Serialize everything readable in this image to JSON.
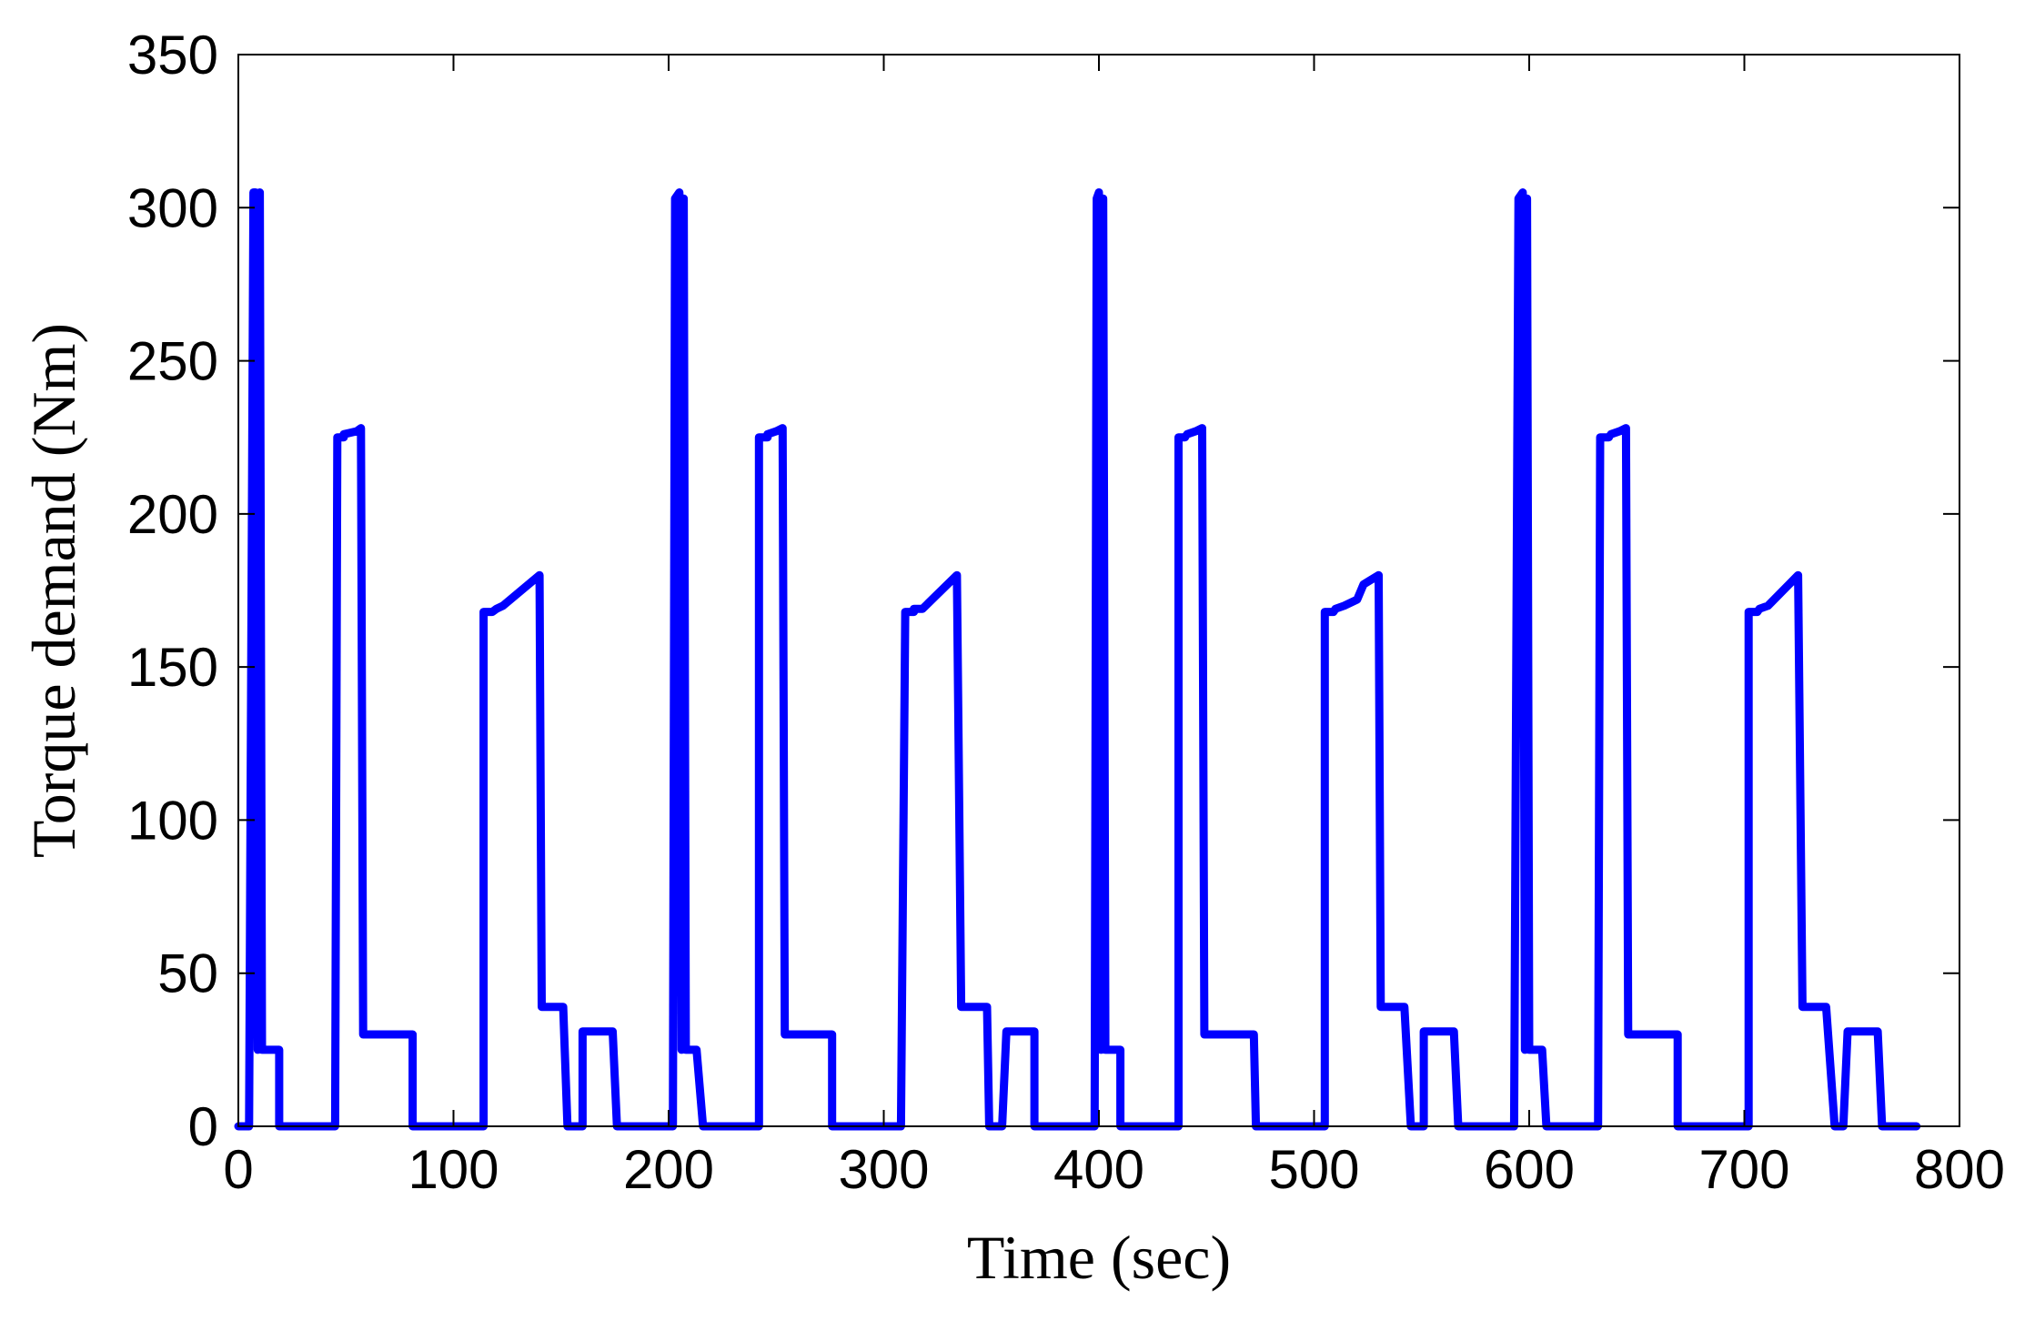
{
  "chart_data": {
    "type": "line",
    "title": "",
    "xlabel": "Time (sec)",
    "ylabel": "Torque demand (Nm)",
    "xlim": [
      0,
      800
    ],
    "ylim": [
      0,
      350
    ],
    "xticks": [
      0,
      100,
      200,
      300,
      400,
      500,
      600,
      700,
      800
    ],
    "yticks": [
      0,
      50,
      100,
      150,
      200,
      250,
      300,
      350
    ],
    "grid": false,
    "legend": "none",
    "series": [
      {
        "color": "#0000ff",
        "points": [
          [
            0,
            0
          ],
          [
            5,
            0
          ],
          [
            7,
            305
          ],
          [
            8,
            305
          ],
          [
            9,
            25
          ],
          [
            10,
            305
          ],
          [
            11,
            25
          ],
          [
            19,
            25
          ],
          [
            19,
            0
          ],
          [
            45,
            0
          ],
          [
            46,
            225
          ],
          [
            49,
            225
          ],
          [
            49,
            226
          ],
          [
            55,
            227
          ],
          [
            57,
            228
          ],
          [
            58,
            30
          ],
          [
            81,
            30
          ],
          [
            81,
            0
          ],
          [
            114,
            0
          ],
          [
            114,
            168
          ],
          [
            118,
            168
          ],
          [
            120,
            169
          ],
          [
            123,
            170
          ],
          [
            140,
            180
          ],
          [
            141,
            39
          ],
          [
            151,
            39
          ],
          [
            153,
            0
          ],
          [
            160,
            0
          ],
          [
            160,
            31
          ],
          [
            174,
            31
          ],
          [
            176,
            0
          ],
          [
            202,
            0
          ],
          [
            203,
            303
          ],
          [
            205,
            305
          ],
          [
            206,
            25
          ],
          [
            207,
            303
          ],
          [
            208,
            25
          ],
          [
            213,
            25
          ],
          [
            216,
            0
          ],
          [
            242,
            0
          ],
          [
            242,
            225
          ],
          [
            246,
            225
          ],
          [
            246,
            226
          ],
          [
            250,
            227
          ],
          [
            253,
            228
          ],
          [
            254,
            30
          ],
          [
            276,
            30
          ],
          [
            276,
            0
          ],
          [
            308,
            0
          ],
          [
            310,
            168
          ],
          [
            314,
            168
          ],
          [
            314,
            169
          ],
          [
            318,
            169
          ],
          [
            334,
            180
          ],
          [
            336,
            39
          ],
          [
            348,
            39
          ],
          [
            349,
            0
          ],
          [
            355,
            0
          ],
          [
            357,
            31
          ],
          [
            370,
            31
          ],
          [
            370,
            0
          ],
          [
            398,
            0
          ],
          [
            399,
            303
          ],
          [
            400,
            305
          ],
          [
            401,
            25
          ],
          [
            402,
            303
          ],
          [
            403,
            25
          ],
          [
            410,
            25
          ],
          [
            410,
            0
          ],
          [
            437,
            0
          ],
          [
            437,
            225
          ],
          [
            440,
            225
          ],
          [
            441,
            226
          ],
          [
            445,
            227
          ],
          [
            448,
            228
          ],
          [
            449,
            30
          ],
          [
            472,
            30
          ],
          [
            473,
            0
          ],
          [
            505,
            0
          ],
          [
            505,
            168
          ],
          [
            509,
            168
          ],
          [
            510,
            169
          ],
          [
            514,
            170
          ],
          [
            520,
            172
          ],
          [
            523,
            177
          ],
          [
            530,
            180
          ],
          [
            531,
            39
          ],
          [
            542,
            39
          ],
          [
            545,
            0
          ],
          [
            551,
            0
          ],
          [
            551,
            31
          ],
          [
            565,
            31
          ],
          [
            567,
            0
          ],
          [
            593,
            0
          ],
          [
            595,
            303
          ],
          [
            597,
            305
          ],
          [
            598,
            25
          ],
          [
            599,
            303
          ],
          [
            600,
            25
          ],
          [
            606,
            25
          ],
          [
            608,
            0
          ],
          [
            632,
            0
          ],
          [
            633,
            225
          ],
          [
            637,
            225
          ],
          [
            638,
            226
          ],
          [
            642,
            227
          ],
          [
            645,
            228
          ],
          [
            646,
            30
          ],
          [
            669,
            30
          ],
          [
            669,
            0
          ],
          [
            702,
            0
          ],
          [
            702,
            168
          ],
          [
            706,
            168
          ],
          [
            707,
            169
          ],
          [
            711,
            170
          ],
          [
            725,
            180
          ],
          [
            727,
            39
          ],
          [
            738,
            39
          ],
          [
            742,
            0
          ],
          [
            746,
            0
          ],
          [
            748,
            31
          ],
          [
            762,
            31
          ],
          [
            764,
            0
          ],
          [
            780,
            0
          ]
        ]
      }
    ]
  }
}
